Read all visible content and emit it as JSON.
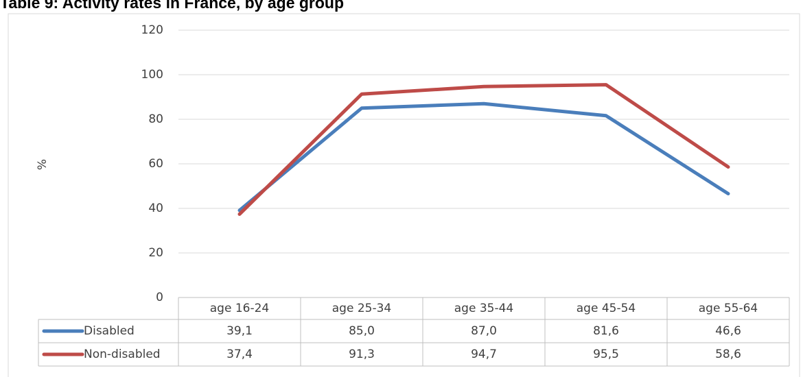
{
  "chart_data": {
    "type": "line",
    "title": "Table 9: Activity rates in France, by age group",
    "y_label": "%",
    "categories": [
      "age 16-24",
      "age 25-34",
      "age 35-44",
      "age 45-54",
      "age 55-64"
    ],
    "series": [
      {
        "name": "Disabled",
        "color": "#4a7ebb",
        "values": [
          39.1,
          85.0,
          87.0,
          81.6,
          46.6
        ],
        "value_labels": [
          "39,1",
          "85,0",
          "87,0",
          "81,6",
          "46,6"
        ]
      },
      {
        "name": "Non-disabled",
        "color": "#be4b48",
        "values": [
          37.4,
          91.3,
          94.7,
          95.5,
          58.6
        ],
        "value_labels": [
          "37,4",
          "91,3",
          "94,7",
          "95,5",
          "58,6"
        ]
      }
    ],
    "ylim": [
      0,
      120
    ],
    "yticks": [
      0,
      20,
      40,
      60,
      80,
      100,
      120
    ],
    "grid": true
  }
}
